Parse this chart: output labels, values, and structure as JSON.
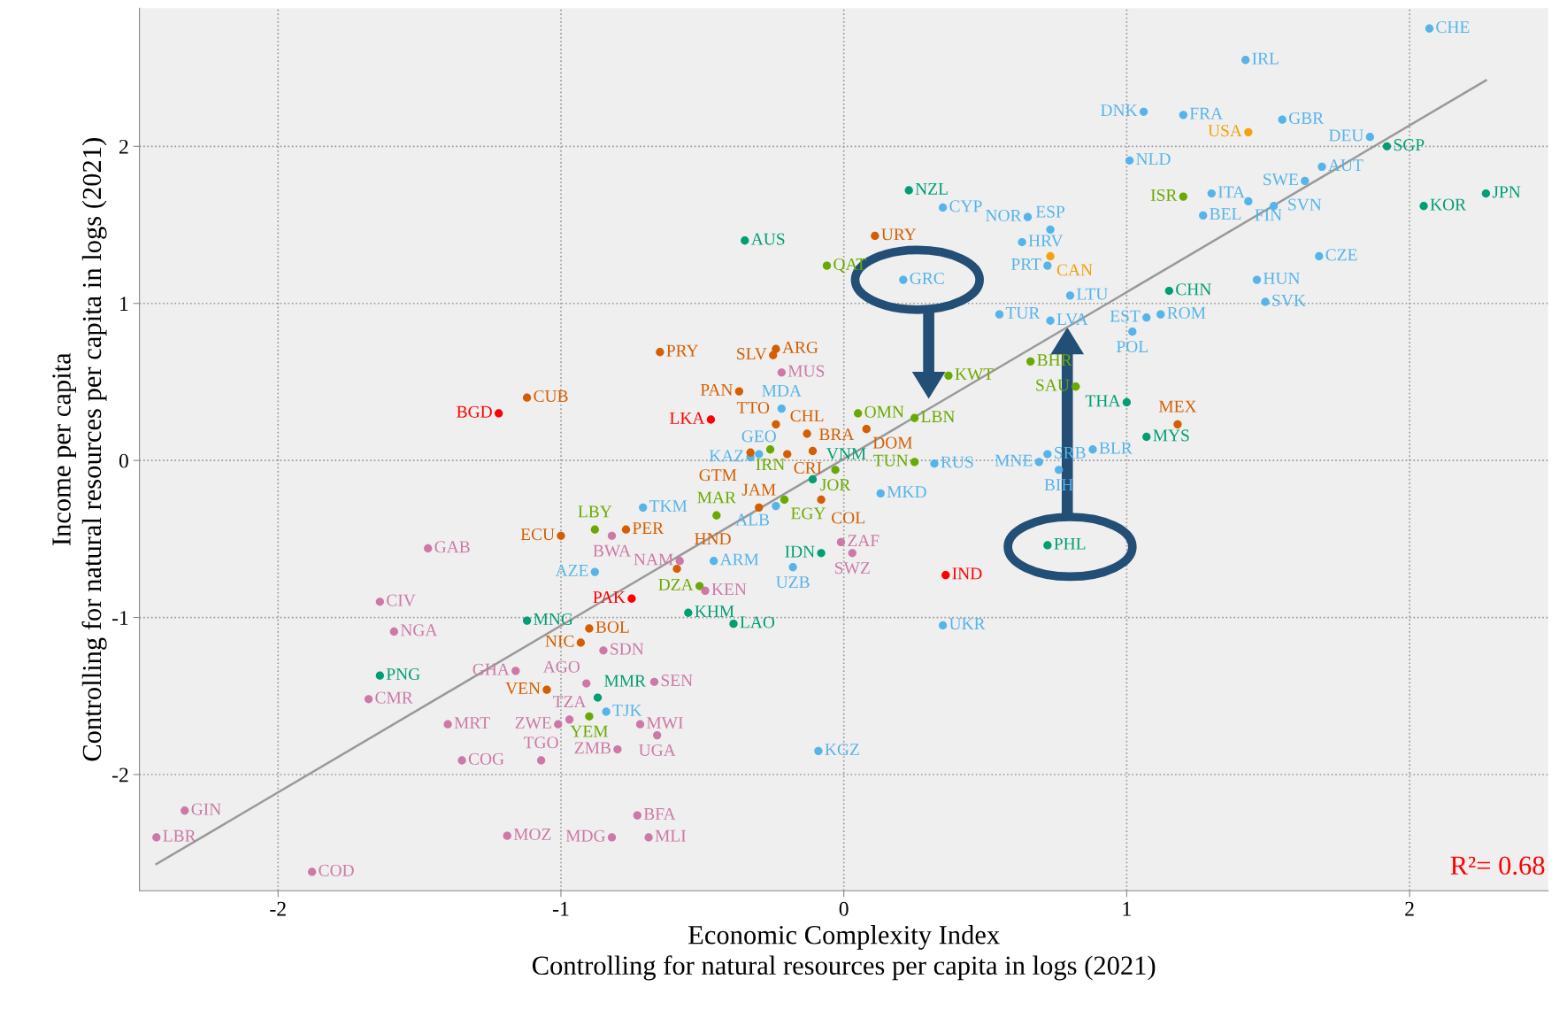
{
  "chart_data": {
    "type": "scatter",
    "xlabel": "Economic Complexity Index\nControlling for natural resources per capita in logs (2021)",
    "ylabel": "Income per capita\nControlling for natural resources per capita in logs (2021)",
    "xlim": [
      -2.49,
      2.49
    ],
    "ylim": [
      -2.74,
      2.88
    ],
    "xticks": [
      -2,
      -1,
      0,
      1,
      2
    ],
    "yticks": [
      -2,
      -1,
      0,
      1,
      2
    ],
    "grid": true,
    "marker": "circle",
    "annotations": [
      "R²= 0.68"
    ],
    "series": [
      {
        "color": "#56b4e9",
        "x": [
          2.07,
          1.42,
          1.06,
          1.2,
          1.55,
          1.86,
          1.01,
          1.69,
          1.63,
          1.3,
          1.43,
          1.52,
          1.27,
          0.35,
          0.65,
          0.73,
          0.63,
          0.72,
          1.68,
          1.46,
          1.49,
          0.8,
          1.07,
          1.12,
          1.02,
          0.55,
          0.73,
          0.21,
          -0.22,
          0.88,
          0.72,
          0.69,
          0.76,
          0.32,
          0.13,
          -0.24,
          -0.33,
          -0.3,
          -0.71,
          -0.88,
          -0.46,
          -0.18,
          0.35,
          -0.09,
          -0.84
        ],
        "values": [
          2.75,
          2.55,
          2.22,
          2.2,
          2.17,
          2.06,
          1.91,
          1.87,
          1.78,
          1.7,
          1.65,
          1.62,
          1.56,
          1.61,
          1.55,
          1.47,
          1.39,
          1.24,
          1.3,
          1.15,
          1.01,
          1.05,
          0.91,
          0.93,
          0.82,
          0.93,
          0.89,
          1.15,
          0.33,
          0.07,
          0.04,
          -0.01,
          -0.06,
          -0.02,
          -0.21,
          -0.29,
          0.02,
          0.04,
          -0.3,
          -0.71,
          -0.64,
          -0.68,
          -1.05,
          -1.85,
          -1.6
        ],
        "value_labels": [
          "CHE",
          "IRL",
          "DNK",
          "FRA",
          "GBR",
          "DEU",
          "NLD",
          "AUT",
          "SWE",
          "ITA",
          "FIN",
          "SVN",
          "BEL",
          "CYP",
          "NOR",
          "ESP",
          "HRV",
          "PRT",
          "CZE",
          "HUN",
          "SVK",
          "LTU",
          "EST",
          "ROM",
          "POL",
          "TUR",
          "LVA",
          "GRC",
          "MDA",
          "BLR",
          "SRB",
          "MNE",
          "BIH",
          "RUS",
          "MKD",
          "ALB",
          "KAZ",
          "GEO",
          "TKM",
          "AZE",
          "ARM",
          "UZB",
          "UKR",
          "KGZ",
          "TJK"
        ]
      },
      {
        "color": "#f0a30a",
        "x": [
          1.43,
          0.73
        ],
        "values": [
          2.09,
          1.3
        ],
        "value_labels": [
          "USA",
          "CAN"
        ]
      },
      {
        "color": "#009e73",
        "x": [
          1.92,
          2.27,
          2.05,
          0.23,
          -0.35,
          1.15,
          1.0,
          1.07,
          0.72,
          -0.08,
          -0.11,
          -0.55,
          -0.39,
          -1.12,
          -1.64,
          -0.87
        ],
        "values": [
          2.0,
          1.7,
          1.62,
          1.72,
          1.4,
          1.08,
          0.37,
          0.15,
          -0.54,
          -0.59,
          -0.12,
          -0.97,
          -1.04,
          -1.02,
          -1.37,
          -1.51
        ],
        "value_labels": [
          "SGP",
          "JPN",
          "KOR",
          "NZL",
          "AUS",
          "CHN",
          "THA",
          "MYS",
          "PHL",
          "IDN",
          "VNM",
          "KHM",
          "LAO",
          "MNG",
          "PNG",
          "MMR"
        ]
      },
      {
        "color": "#6aaa00",
        "x": [
          1.2,
          -0.06,
          0.37,
          0.66,
          0.82,
          0.05,
          0.25,
          0.25,
          -0.03,
          -0.21,
          -0.45,
          -0.26,
          -0.88,
          -0.51,
          -0.9
        ],
        "values": [
          1.68,
          1.24,
          0.54,
          0.63,
          0.47,
          0.3,
          0.27,
          -0.01,
          -0.06,
          -0.25,
          -0.35,
          0.07,
          -0.44,
          -0.8,
          -1.63
        ],
        "value_labels": [
          "ISR",
          "QAT",
          "KWT",
          "BHR",
          "SAU",
          "OMN",
          "LBN",
          "TUN",
          "JOR",
          "EGY",
          "MAR",
          "IRN",
          "LBY",
          "DZA",
          "YEM"
        ]
      },
      {
        "color": "#d55e00",
        "x": [
          0.11,
          -0.65,
          -0.24,
          -0.25,
          -0.37,
          -1.12,
          -0.24,
          -0.13,
          0.08,
          1.18,
          -0.11,
          -0.2,
          -0.33,
          -1.0,
          -0.77,
          -0.08,
          -0.3,
          -0.59,
          -0.9,
          -0.93,
          -1.05
        ],
        "values": [
          1.43,
          0.69,
          0.71,
          0.67,
          0.44,
          0.4,
          0.23,
          0.17,
          0.2,
          0.23,
          0.06,
          0.04,
          0.05,
          -0.48,
          -0.44,
          -0.25,
          -0.3,
          -0.69,
          -1.07,
          -1.16,
          -1.46
        ],
        "value_labels": [
          "URY",
          "PRY",
          "ARG",
          "SLV",
          "PAN",
          "CUB",
          "TTO",
          "CHL",
          "DOM",
          "MEX",
          "BRA",
          "CRI",
          "GTM",
          "ECU",
          "PER",
          "COL",
          "JAM",
          "HND",
          "BOL",
          "NIC",
          "VEN"
        ]
      },
      {
        "color": "#ff0000",
        "x": [
          -1.22,
          -0.47,
          0.36,
          -0.75
        ],
        "values": [
          0.3,
          0.26,
          -0.73,
          -0.88
        ],
        "value_labels": [
          "BGD",
          "LKA",
          "IND",
          "PAK"
        ]
      },
      {
        "color": "#cc79a7",
        "x": [
          -0.22,
          -1.47,
          -0.82,
          -0.58,
          -0.01,
          0.03,
          -0.49,
          -1.64,
          -1.59,
          -0.85,
          -1.16,
          -0.91,
          -0.67,
          -1.68,
          -1.4,
          -1.01,
          -0.97,
          -0.72,
          -0.66,
          -0.8,
          -1.35,
          -1.07,
          -2.33,
          -2.43,
          -0.73,
          -1.19,
          -0.82,
          -0.69,
          -1.88
        ],
        "values": [
          0.56,
          -0.56,
          -0.48,
          -0.64,
          -0.52,
          -0.59,
          -0.83,
          -0.9,
          -1.09,
          -1.21,
          -1.34,
          -1.42,
          -1.41,
          -1.52,
          -1.68,
          -1.68,
          -1.65,
          -1.68,
          -1.75,
          -1.84,
          -1.91,
          -1.91,
          -2.23,
          -2.4,
          -2.26,
          -2.39,
          -2.4,
          -2.4,
          -2.62
        ],
        "value_labels": [
          "MUS",
          "GAB",
          "BWA",
          "NAM",
          "ZAF",
          "SWZ",
          "KEN",
          "CIV",
          "NGA",
          "SDN",
          "GHA",
          "AGO",
          "SEN",
          "CMR",
          "MRT",
          "ZWE",
          "TZA",
          "MWI",
          "UGA",
          "ZMB",
          "COG",
          "TGO",
          "GIN",
          "LBR",
          "BFA",
          "MOZ",
          "MDG",
          "MLI",
          "COD"
        ]
      },
      {
        "type": "line",
        "marker": "none",
        "color": "#999999",
        "x": [
          -2.43,
          2.27
        ],
        "values": [
          -2.57,
          2.42
        ]
      }
    ]
  }
}
